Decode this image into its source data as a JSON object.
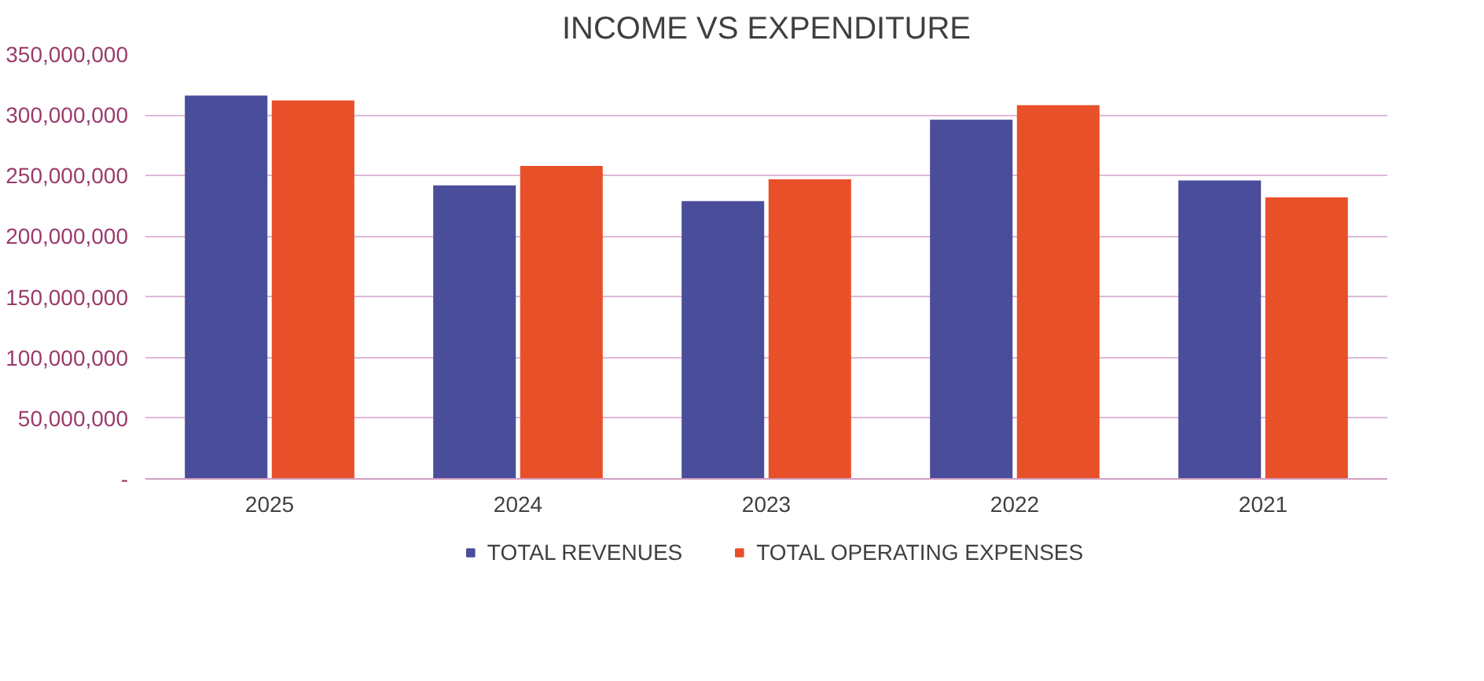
{
  "chart_data": {
    "type": "bar",
    "title": "INCOME VS EXPENDITURE",
    "categories": [
      "2025",
      "2024",
      "2023",
      "2022",
      "2021"
    ],
    "series": [
      {
        "name": "TOTAL REVENUES",
        "color": "#4a4d9a",
        "values": [
          316000000,
          242000000,
          229000000,
          296000000,
          246000000
        ]
      },
      {
        "name": "TOTAL OPERATING EXPENSES",
        "color": "#e8502a",
        "values": [
          312000000,
          258000000,
          247000000,
          308000000,
          232000000
        ]
      }
    ],
    "ylim": [
      0,
      350000000
    ],
    "yticks": [
      {
        "value": 0,
        "label": "-"
      },
      {
        "value": 50000000,
        "label": "50,000,000"
      },
      {
        "value": 100000000,
        "label": "100,000,000"
      },
      {
        "value": 150000000,
        "label": "150,000,000"
      },
      {
        "value": 200000000,
        "label": "200,000,000"
      },
      {
        "value": 250000000,
        "label": "250,000,000"
      },
      {
        "value": 300000000,
        "label": "300,000,000"
      },
      {
        "value": 350000000,
        "label": "350,000,000"
      }
    ],
    "grid": "y",
    "legend": "bottom"
  }
}
